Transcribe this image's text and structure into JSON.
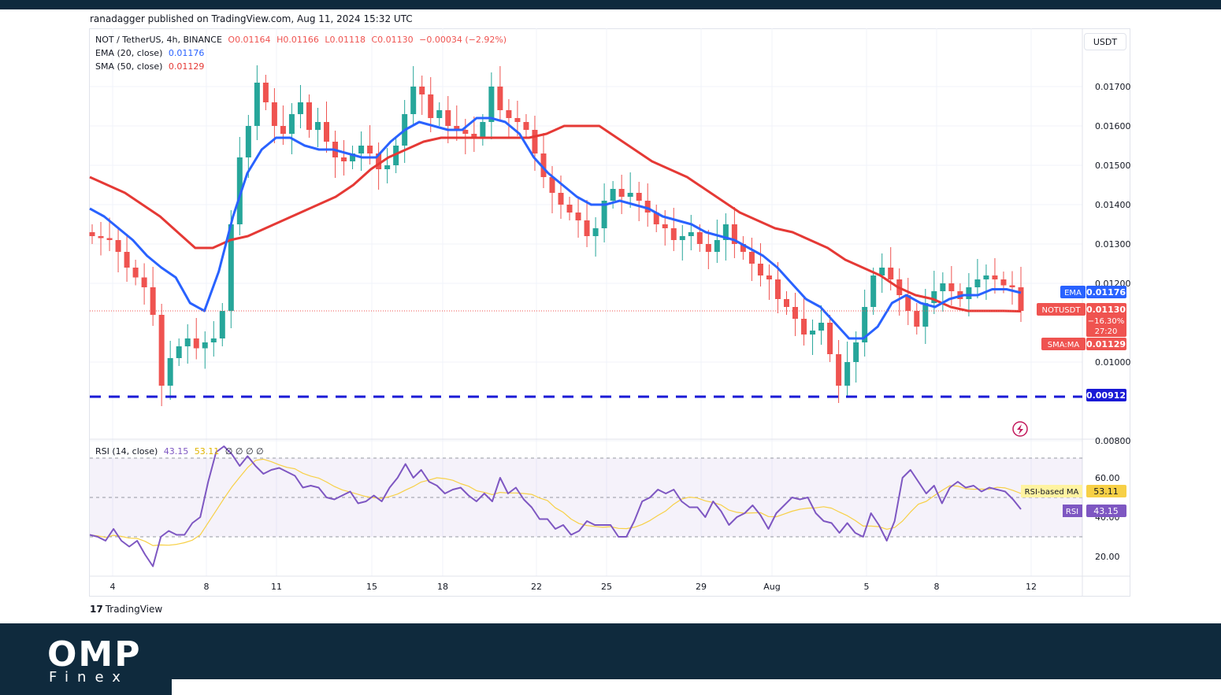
{
  "header": {
    "publisher_text": "ranadagger published on TradingView.com, Aug 11, 2024 15:32 UTC"
  },
  "legend": {
    "symbol": "NOT / TetherUS, 4h, BINANCE",
    "open": "O0.01164",
    "high": "H0.01166",
    "low": "L0.01118",
    "close": "C0.01130",
    "change": "−0.00034 (−2.92%)",
    "ema_label": "EMA (20, close)",
    "ema_value": "0.01176",
    "sma_label": "SMA (50, close)",
    "sma_value": "0.01129",
    "rsi_label": "RSI (14, close)",
    "rsi_value": "43.15",
    "rsi_ma_value": "53.11",
    "rsi_extra": "∅ ∅ ∅ ∅"
  },
  "currency_button": "USDT",
  "brand": {
    "tv_mark": "17",
    "tv_text": "TradingView",
    "omp": "OMP",
    "finex": "Finex"
  },
  "colors": {
    "up": "#26a69a",
    "down": "#ef5350",
    "ema": "#2962ff",
    "sma": "#e53935",
    "rsi": "#7e57c2",
    "rsi_ma": "#f7d046",
    "support": "#1a1ad6",
    "brand_bg": "#0f2a3d"
  },
  "chart_data": {
    "type": "candlestick",
    "title": "NOT / TetherUS, 4h, BINANCE",
    "price_axis": {
      "ticks": [
        "0.01700",
        "0.01600",
        "0.01500",
        "0.01400",
        "0.01300",
        "0.01200",
        "0.01000",
        "0.00800"
      ],
      "ylim": [
        0.008,
        0.018
      ]
    },
    "x_ticks": [
      "4",
      "8",
      "11",
      "15",
      "18",
      "22",
      "25",
      "29",
      "Aug",
      "5",
      "8",
      "12"
    ],
    "series": [
      {
        "name": "NOTUSDT",
        "close_path": [
          0.0132,
          0.01315,
          0.0131,
          0.0128,
          0.0124,
          0.01215,
          0.0119,
          0.0112,
          0.0094,
          0.0101,
          0.0104,
          0.0106,
          0.01035,
          0.0105,
          0.0106,
          0.0113,
          0.0135,
          0.0152,
          0.016,
          0.0171,
          0.0166,
          0.016,
          0.0158,
          0.0163,
          0.0166,
          0.0159,
          0.0161,
          0.0156,
          0.0152,
          0.0151,
          0.0153,
          0.0155,
          0.0153,
          0.0149,
          0.015,
          0.0155,
          0.0163,
          0.017,
          0.0168,
          0.0162,
          0.0164,
          0.016,
          0.0159,
          0.0158,
          0.0157,
          0.0161,
          0.017,
          0.0164,
          0.0162,
          0.0161,
          0.0159,
          0.0153,
          0.0147,
          0.0143,
          0.014,
          0.0138,
          0.0136,
          0.0132,
          0.0134,
          0.0141,
          0.0144,
          0.0142,
          0.0143,
          0.0141,
          0.0138,
          0.0135,
          0.0134,
          0.0131,
          0.0132,
          0.0133,
          0.013,
          0.0128,
          0.0131,
          0.0135,
          0.013,
          0.0128,
          0.0125,
          0.0122,
          0.0121,
          0.0116,
          0.0114,
          0.0111,
          0.0107,
          0.0108,
          0.011,
          0.0102,
          0.0094,
          0.01,
          0.0105,
          0.0114,
          0.0122,
          0.0124,
          0.0121,
          0.0117,
          0.0113,
          0.0109,
          0.0115,
          0.0118,
          0.012,
          0.0118,
          0.0116,
          0.0119,
          0.0121,
          0.0122,
          0.0121,
          0.01195,
          0.0119,
          0.0113
        ]
      },
      {
        "name": "EMA (20, close)",
        "last": 0.01176,
        "path": [
          0.0139,
          0.0137,
          0.0134,
          0.0131,
          0.0127,
          0.0124,
          0.01215,
          0.0115,
          0.0113,
          0.0123,
          0.0137,
          0.0148,
          0.0154,
          0.0157,
          0.0157,
          0.0155,
          0.0154,
          0.0154,
          0.0153,
          0.0152,
          0.0152,
          0.0156,
          0.0159,
          0.0161,
          0.016,
          0.0159,
          0.0159,
          0.0162,
          0.0162,
          0.0161,
          0.0158,
          0.0152,
          0.0148,
          0.0145,
          0.0142,
          0.014,
          0.014,
          0.0141,
          0.014,
          0.0139,
          0.0137,
          0.0136,
          0.0135,
          0.0133,
          0.0132,
          0.0131,
          0.0129,
          0.0127,
          0.0124,
          0.012,
          0.0116,
          0.0114,
          0.011,
          0.0106,
          0.0106,
          0.0109,
          0.0115,
          0.0117,
          0.0115,
          0.0114,
          0.0116,
          0.0117,
          0.0117,
          0.01185,
          0.01185,
          0.01176
        ]
      },
      {
        "name": "SMA (50, close)",
        "last": 0.01129,
        "path": [
          0.0147,
          0.0145,
          0.0143,
          0.014,
          0.0137,
          0.0133,
          0.0129,
          0.0129,
          0.0131,
          0.0132,
          0.0134,
          0.0136,
          0.0138,
          0.014,
          0.0142,
          0.0145,
          0.0149,
          0.0152,
          0.0154,
          0.0156,
          0.0157,
          0.0157,
          0.0157,
          0.0157,
          0.0157,
          0.0157,
          0.0158,
          0.016,
          0.016,
          0.016,
          0.0157,
          0.0154,
          0.0151,
          0.0149,
          0.0147,
          0.0144,
          0.0141,
          0.0138,
          0.0136,
          0.0134,
          0.0133,
          0.0131,
          0.0129,
          0.0126,
          0.0124,
          0.0122,
          0.0119,
          0.0117,
          0.0116,
          0.0114,
          0.0113,
          0.0113,
          0.0113,
          0.01129
        ]
      }
    ],
    "support_level": 0.00912,
    "price_labels": [
      {
        "tag": "EMA",
        "value": "0.01176"
      },
      {
        "tag": "NOTUSDT",
        "value": "0.01130",
        "extra": [
          "−16.30%",
          "27:20"
        ]
      },
      {
        "tag": "SMA:MA",
        "value": "0.01129"
      },
      {
        "tag": "",
        "value": "0.00912"
      }
    ],
    "rsi": {
      "ticks": [
        "60.00",
        "40.00",
        "20.00"
      ],
      "bands": [
        30,
        50,
        70
      ],
      "ylim": [
        10,
        80
      ],
      "labels": [
        {
          "tag": "RSI-based MA",
          "value": "53.11"
        },
        {
          "tag": "RSI",
          "value": "43.15"
        }
      ],
      "path": [
        31,
        30,
        28,
        34,
        28,
        25,
        28,
        21,
        15,
        30,
        33,
        31,
        31,
        37,
        40,
        58,
        73,
        76,
        72,
        66,
        71,
        66,
        62,
        64,
        65,
        63,
        61,
        55,
        56,
        55,
        50,
        49,
        51,
        53,
        47,
        48,
        51,
        48,
        55,
        60,
        67,
        60,
        64,
        58,
        56,
        52,
        54,
        55,
        51,
        48,
        52,
        48,
        60,
        52,
        55,
        49,
        45,
        39,
        39,
        34,
        36,
        31,
        33,
        38,
        36,
        36,
        36,
        30,
        30,
        38,
        48,
        50,
        54,
        52,
        54,
        48,
        45,
        45,
        40,
        48,
        43,
        36,
        40,
        42,
        46,
        41,
        34,
        42,
        46,
        50,
        49,
        50,
        42,
        38,
        37,
        32,
        37,
        32,
        30,
        42,
        36,
        28,
        38,
        60,
        64,
        58,
        52,
        56,
        47,
        55,
        58,
        55,
        56,
        53,
        55,
        54,
        53,
        49,
        44
      ]
    }
  }
}
